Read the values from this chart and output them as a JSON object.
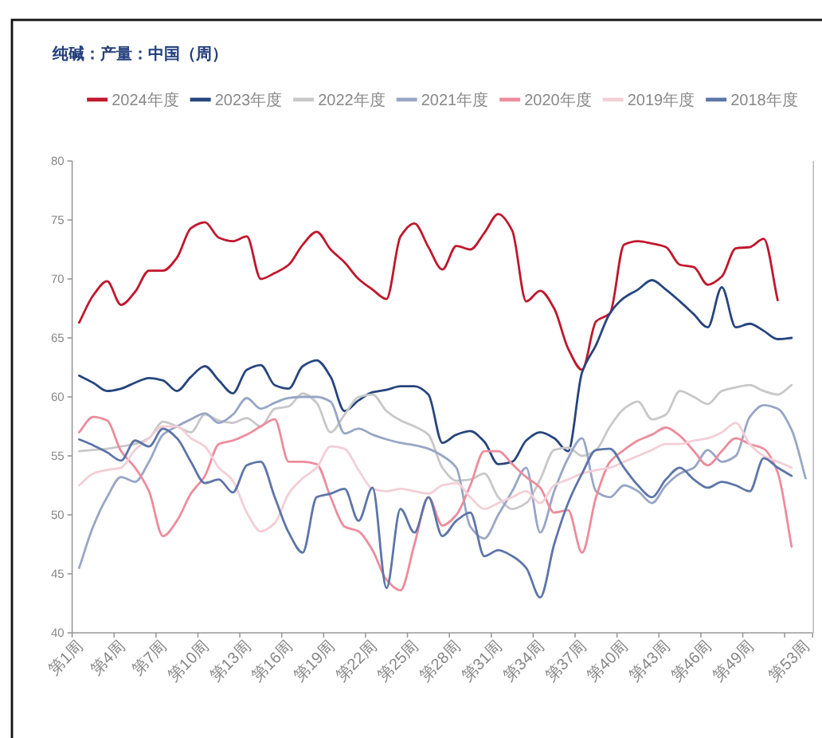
{
  "chart_data": {
    "type": "line",
    "title": "纯碱：产量：中国（周）",
    "categories": [
      "第1周",
      null,
      null,
      "第4周",
      null,
      null,
      "第7周",
      null,
      null,
      "第10周",
      null,
      null,
      "第13周",
      null,
      null,
      "第16周",
      null,
      null,
      "第19周",
      null,
      null,
      "第22周",
      null,
      null,
      "第25周",
      null,
      null,
      "第28周",
      null,
      null,
      "第31周",
      null,
      null,
      "第34周",
      null,
      null,
      "第37周",
      null,
      null,
      "第40周",
      null,
      null,
      "第43周",
      null,
      null,
      "第46周",
      null,
      null,
      "第49周",
      null,
      null,
      null,
      "第53周"
    ],
    "series": [
      {
        "name": "2024年度",
        "color": "#c0172d",
        "values": [
          66.3,
          68.6,
          69.8,
          67.8,
          68.9,
          70.7,
          70.7,
          71.8,
          74.3,
          74.8,
          73.5,
          73.2,
          73.6,
          70.0,
          70.5,
          71.2,
          72.9,
          74.0,
          72.5,
          71.4,
          70.0,
          69.1,
          68.3,
          73.6,
          74.7,
          72.7,
          70.8,
          72.8,
          72.5,
          73.9,
          75.5,
          74.1,
          68.1,
          69.0,
          67.5,
          64.1,
          62.3,
          66.4,
          67.1,
          72.9,
          73.2,
          73.0,
          72.7,
          71.2,
          71.0,
          69.5,
          70.2,
          72.6,
          72.7,
          73.4,
          68.2,
          null,
          null
        ]
      },
      {
        "name": "2023年度",
        "color": "#27457e",
        "values": [
          61.8,
          61.2,
          60.5,
          60.7,
          61.2,
          61.6,
          61.4,
          60.5,
          61.7,
          62.6,
          61.4,
          60.3,
          62.3,
          62.7,
          61.0,
          60.7,
          62.6,
          63.1,
          61.7,
          58.8,
          59.7,
          60.4,
          60.6,
          60.9,
          60.9,
          60.2,
          56.1,
          56.8,
          57.1,
          56.2,
          54.3,
          54.5,
          56.3,
          57.0,
          56.5,
          55.4,
          62.1,
          64.4,
          67.1,
          68.4,
          69.1,
          69.9,
          69.1,
          68.1,
          67.0,
          65.9,
          69.3,
          65.9,
          66.2,
          65.6,
          64.9,
          65.0,
          null
        ]
      },
      {
        "name": "2022年度",
        "color": "#c8c8c8",
        "values": [
          55.4,
          55.5,
          55.6,
          55.8,
          56.0,
          56.5,
          57.9,
          57.5,
          57.0,
          58.5,
          58.0,
          57.8,
          58.2,
          57.5,
          59.0,
          59.2,
          60.3,
          59.5,
          57.0,
          58.5,
          60.0,
          60.2,
          58.8,
          58.0,
          57.5,
          56.8,
          54.0,
          52.9,
          53.0,
          53.5,
          51.5,
          50.5,
          51.0,
          53.0,
          55.5,
          55.7,
          55.0,
          55.5,
          57.5,
          59.0,
          59.6,
          58.1,
          58.5,
          60.5,
          60.0,
          59.4,
          60.5,
          60.8,
          61.0,
          60.5,
          60.2,
          61.0,
          null
        ]
      },
      {
        "name": "2021年度",
        "color": "#98a6c6",
        "values": [
          45.5,
          49.0,
          51.5,
          53.2,
          52.8,
          54.5,
          56.8,
          57.5,
          58.1,
          58.6,
          57.8,
          58.5,
          59.9,
          59.0,
          59.5,
          59.9,
          60.0,
          60.0,
          59.6,
          56.9,
          57.3,
          56.8,
          56.4,
          56.1,
          55.9,
          55.6,
          55.0,
          54.0,
          49.0,
          48.0,
          50.0,
          52.0,
          54.0,
          48.5,
          52.0,
          54.8,
          56.5,
          52.0,
          51.5,
          52.5,
          52.0,
          51.0,
          52.5,
          53.5,
          54.0,
          55.5,
          54.5,
          55.0,
          58.3,
          59.3,
          59.0,
          57.2,
          53.1
        ]
      },
      {
        "name": "2020年度",
        "color": "#ec8c9c",
        "values": [
          57.0,
          58.3,
          58.0,
          55.4,
          54.0,
          52.0,
          48.2,
          49.5,
          51.8,
          53.3,
          56.0,
          56.3,
          56.8,
          57.5,
          58.1,
          54.5,
          54.5,
          54.3,
          51.5,
          49.0,
          48.6,
          47.0,
          44.5,
          43.6,
          47.5,
          51.5,
          49.1,
          50.0,
          52.5,
          55.4,
          55.4,
          54.3,
          53.2,
          52.3,
          50.2,
          50.4,
          46.8,
          51.5,
          54.5,
          55.5,
          56.3,
          56.8,
          57.4,
          56.7,
          55.4,
          54.2,
          55.4,
          56.5,
          56.0,
          55.6,
          53.6,
          47.3,
          null
        ]
      },
      {
        "name": "2019年度",
        "color": "#f2cfd6",
        "values": [
          52.5,
          53.5,
          53.8,
          54.0,
          55.5,
          56.5,
          57.5,
          57.5,
          56.5,
          55.8,
          54.0,
          52.9,
          50.2,
          48.6,
          49.3,
          51.8,
          53.1,
          54.0,
          55.8,
          55.6,
          53.8,
          52.2,
          52.0,
          52.2,
          52.0,
          51.8,
          52.5,
          52.7,
          51.5,
          50.5,
          51.0,
          51.5,
          52.0,
          51.0,
          52.5,
          53.0,
          53.5,
          53.8,
          54.0,
          54.5,
          55.0,
          55.5,
          56.0,
          56.0,
          56.3,
          56.5,
          57.0,
          57.8,
          56.0,
          55.0,
          54.5,
          54.0,
          null
        ]
      },
      {
        "name": "2018年度",
        "color": "#5d75a8",
        "values": [
          56.4,
          55.9,
          55.3,
          54.6,
          56.3,
          55.8,
          57.3,
          56.5,
          54.5,
          52.7,
          53.0,
          51.9,
          54.2,
          54.5,
          51.5,
          48.5,
          46.8,
          51.5,
          51.8,
          52.2,
          49.5,
          52.3,
          43.8,
          50.5,
          48.5,
          51.5,
          48.2,
          49.5,
          50.2,
          46.5,
          47.0,
          46.5,
          45.5,
          43.0,
          47.5,
          51.0,
          53.5,
          55.5,
          55.6,
          54.0,
          52.5,
          51.5,
          53.0,
          54.0,
          53.0,
          52.3,
          52.8,
          52.5,
          52.0,
          54.8,
          54.0,
          53.3,
          null
        ]
      }
    ],
    "ylim": [
      40,
      80
    ],
    "yticks": [
      40,
      45,
      50,
      55,
      60,
      65,
      70,
      75,
      80
    ],
    "legend": "top"
  }
}
